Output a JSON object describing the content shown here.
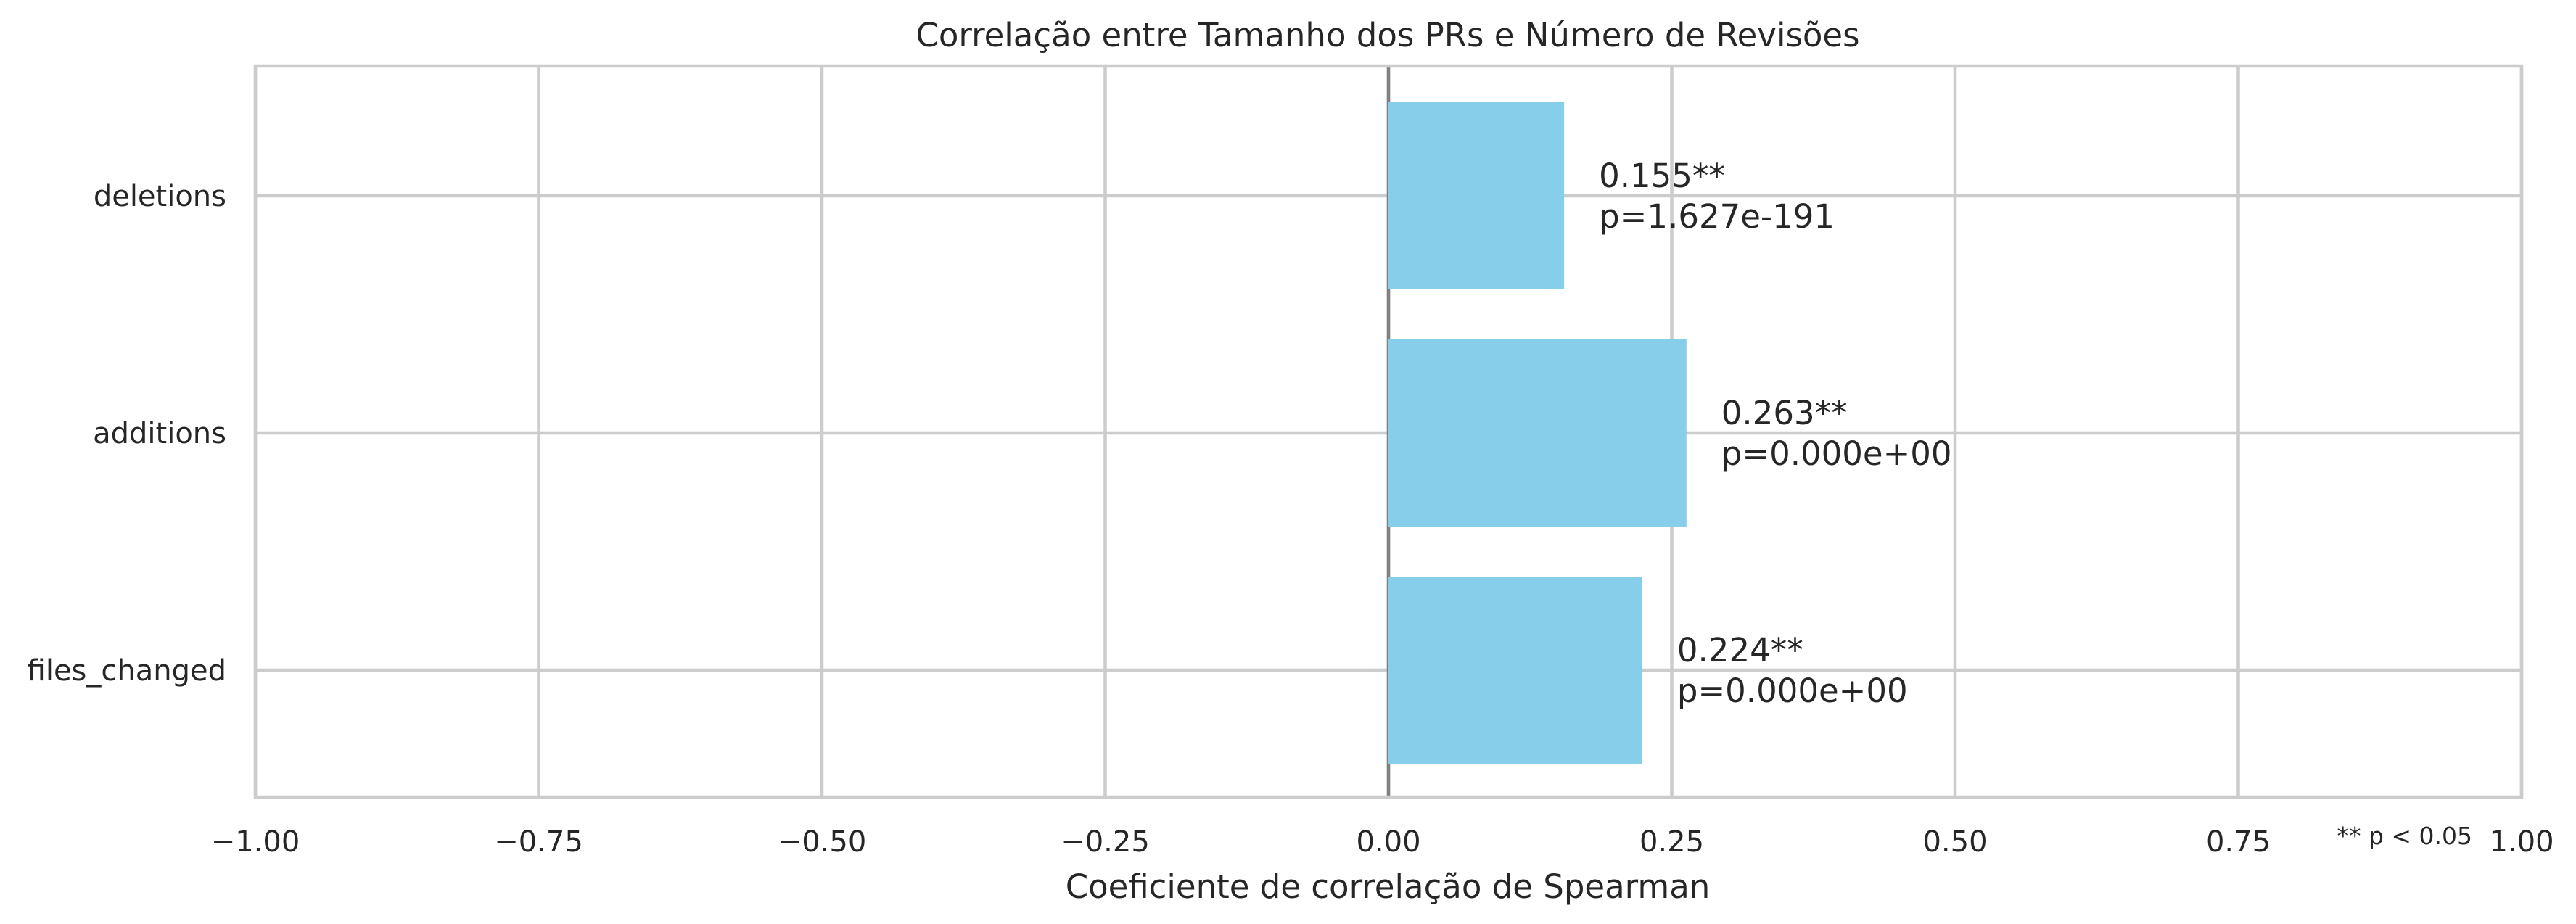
{
  "chart_data": {
    "type": "bar",
    "orientation": "horizontal",
    "title": "Correlação entre Tamanho dos PRs e Número de Revisões",
    "xlabel": "Coeficiente de correlação de Spearman",
    "ylabel": "",
    "xlim": [
      -1.0,
      1.0
    ],
    "xticks": [
      -1.0,
      -0.75,
      -0.5,
      -0.25,
      0.0,
      0.25,
      0.5,
      0.75,
      1.0
    ],
    "xtick_labels": [
      "−1.00",
      "−0.75",
      "−0.50",
      "−0.25",
      "0.00",
      "0.25",
      "0.50",
      "0.75",
      "1.00"
    ],
    "grid": true,
    "bar_color": "#87ceeb",
    "zero_line_color": "#808080",
    "categories": [
      "deletions",
      "additions",
      "files_changed"
    ],
    "values": [
      0.155,
      0.263,
      0.224
    ],
    "annotations": [
      {
        "value_text": "0.155**",
        "p_text": "p=1.627e-191"
      },
      {
        "value_text": "0.263**",
        "p_text": "p=0.000e+00"
      },
      {
        "value_text": "0.224**",
        "p_text": "p=0.000e+00"
      }
    ],
    "footnote": "** p < 0.05"
  }
}
